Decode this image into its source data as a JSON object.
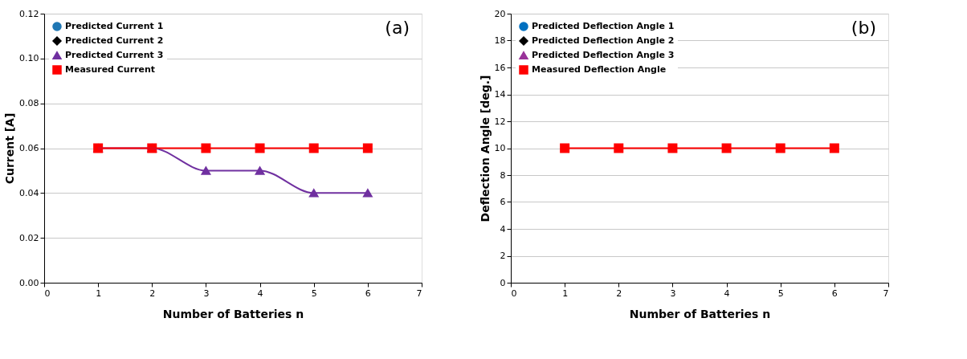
{
  "chart_data": [
    {
      "type": "line",
      "xlabel": "Number of Batteries n",
      "ylabel": "Current [A]",
      "annotations": [
        "(a)"
      ],
      "x": [
        1,
        2,
        3,
        4,
        5,
        6
      ],
      "xlim": [
        0,
        7
      ],
      "xticks": [
        0,
        1,
        2,
        3,
        4,
        5,
        6,
        7
      ],
      "ylim": [
        0,
        0.12
      ],
      "yticks": [
        {
          "value": 0,
          "label": "0.00"
        },
        {
          "value": 0.02,
          "label": "0.02"
        },
        {
          "value": 0.04,
          "label": "0.04"
        },
        {
          "value": 0.06,
          "label": "0.06"
        },
        {
          "value": 0.08,
          "label": "0.08"
        },
        {
          "value": 0.1,
          "label": "0.10"
        },
        {
          "value": 0.12,
          "label": "0.12"
        }
      ],
      "grid": "y",
      "legend": "top left",
      "series": [
        {
          "name": "Predicted Current 1",
          "color": "#1f77b4",
          "marker": "circle",
          "values": [
            null,
            null,
            null,
            null,
            null,
            null
          ]
        },
        {
          "name": "Predicted Current 2",
          "color": "#000000",
          "marker": "diamond",
          "values": [
            null,
            null,
            null,
            null,
            null,
            null
          ]
        },
        {
          "name": "Predicted Current 3",
          "color": "#7030a0",
          "marker": "triangle",
          "line_style": "solid",
          "values": [
            0.06,
            0.06,
            0.05,
            0.05,
            0.04,
            0.04
          ]
        },
        {
          "name": "Measured Current",
          "color": "#ff0000",
          "marker": "square",
          "line_style": "solid",
          "values": [
            0.06,
            0.06,
            0.06,
            0.06,
            0.06,
            0.06
          ]
        }
      ]
    },
    {
      "type": "line",
      "xlabel": "Number of Batteries n",
      "ylabel": "Deflection Angle [deg.]",
      "annotations": [
        "(b)"
      ],
      "x": [
        1,
        2,
        3,
        4,
        5,
        6
      ],
      "xlim": [
        0,
        7
      ],
      "xticks": [
        0,
        1,
        2,
        3,
        4,
        5,
        6,
        7
      ],
      "ylim": [
        0,
        20
      ],
      "yticks": [
        0,
        2,
        4,
        6,
        8,
        10,
        12,
        14,
        16,
        18,
        20
      ],
      "grid": "y",
      "legend": "top left",
      "series": [
        {
          "name": "Predicted Deflection Angle 1",
          "color": "#0070c0",
          "marker": "circle",
          "values": [
            null,
            null,
            null,
            null,
            null,
            null
          ]
        },
        {
          "name": "Predicted Deflection Angle 2",
          "color": "#000000",
          "marker": "diamond",
          "values": [
            null,
            null,
            null,
            null,
            null,
            null
          ]
        },
        {
          "name": "Predicted Deflection Angle 3",
          "color": "#993399",
          "marker": "triangle",
          "values": [
            null,
            null,
            null,
            null,
            null,
            null
          ]
        },
        {
          "name": "Measured Deflection Angle",
          "color": "#ff0000",
          "marker": "square",
          "line_style": "solid",
          "values": [
            10,
            10,
            10,
            10,
            10,
            10
          ]
        }
      ]
    }
  ]
}
